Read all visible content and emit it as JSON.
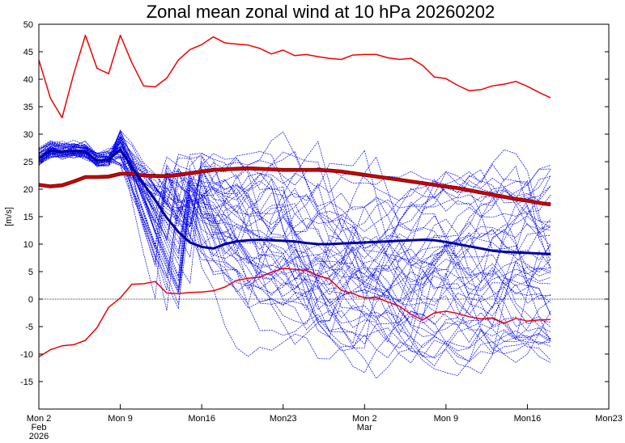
{
  "chart_data": {
    "type": "line",
    "title": "Zonal mean zonal wind at 10 hPa 20260202",
    "ylabel": "[m/s]",
    "xlabel": "",
    "ylim": [
      -20,
      50
    ],
    "yticks": [
      -15,
      -10,
      -5,
      0,
      5,
      10,
      15,
      20,
      25,
      30,
      35,
      40,
      45,
      50
    ],
    "xlim_days": [
      0,
      49
    ],
    "xticks": [
      {
        "day": 0,
        "label": "Mon 2",
        "sub1": "Feb",
        "sub2": "2026"
      },
      {
        "day": 7,
        "label": "Mon 9",
        "sub1": "",
        "sub2": ""
      },
      {
        "day": 14,
        "label": "Mon16",
        "sub1": "",
        "sub2": ""
      },
      {
        "day": 21,
        "label": "Mon23",
        "sub1": "",
        "sub2": ""
      },
      {
        "day": 28,
        "label": "Mon 2",
        "sub1": "Mar",
        "sub2": ""
      },
      {
        "day": 35,
        "label": "Mon 9",
        "sub1": "",
        "sub2": ""
      },
      {
        "day": 42,
        "label": "Mon16",
        "sub1": "",
        "sub2": ""
      },
      {
        "day": 49,
        "label": "Mon23",
        "sub1": "",
        "sub2": ""
      }
    ],
    "colors": {
      "ensemble": "#0000ee",
      "mean": "#000099",
      "climatology": "#cc0000",
      "extremes": "#ee0000",
      "zero": "#000000"
    },
    "series": [
      {
        "name": "historical maximum",
        "role": "extreme",
        "x": [
          0,
          1,
          2,
          3,
          4,
          5,
          6,
          7,
          8,
          9,
          10,
          11,
          12,
          13,
          14,
          15,
          16,
          17,
          18,
          19,
          20,
          21,
          22,
          23,
          24,
          25,
          26,
          27,
          28,
          29,
          30,
          31,
          32,
          33,
          34,
          35,
          36,
          37,
          38,
          39,
          40,
          41,
          42,
          43,
          44
        ],
        "values": [
          43.5,
          36.5,
          33,
          41,
          48,
          42,
          41,
          48,
          43,
          38.8,
          38.6,
          40.2,
          43.5,
          45.4,
          46.3,
          47.7,
          46.6,
          46.4,
          46.2,
          45.6,
          44.6,
          45.3,
          44.3,
          44.5,
          44.1,
          43.8,
          43.6,
          44.4,
          44.5,
          44.5,
          43.9,
          43.6,
          43.8,
          42.5,
          40.4,
          40.1,
          38.9,
          37.9,
          38.1,
          38.8,
          39.1,
          39.6,
          38.7,
          37.6,
          36.6
        ]
      },
      {
        "name": "historical minimum",
        "role": "extreme",
        "x": [
          0,
          1,
          2,
          3,
          4,
          5,
          6,
          7,
          8,
          9,
          10,
          11,
          12,
          13,
          14,
          15,
          16,
          17,
          18,
          19,
          20,
          21,
          22,
          23,
          24,
          25,
          26,
          27,
          28,
          29,
          30,
          31,
          32,
          33,
          34,
          35,
          36,
          37,
          38,
          39,
          40,
          41,
          42,
          43,
          44
        ],
        "values": [
          -10.5,
          -9.2,
          -8.5,
          -8.3,
          -7.5,
          -5.2,
          -1.5,
          0.2,
          2.7,
          2.8,
          3.2,
          1.1,
          1.0,
          1.2,
          1.3,
          1.5,
          2.2,
          3.4,
          3.8,
          4.0,
          4.9,
          5.6,
          5.4,
          5.2,
          4.3,
          3.6,
          1.6,
          1.0,
          0.2,
          0.3,
          -0.5,
          -1.3,
          -2.8,
          -3.8,
          -2.5,
          -2.2,
          -2.6,
          -3.2,
          -3.6,
          -3.4,
          -4.4,
          -3.5,
          -4.0,
          -3.8,
          -3.7
        ]
      },
      {
        "name": "climatological mean",
        "role": "climatology",
        "x": [
          0,
          1,
          2,
          3,
          4,
          5,
          6,
          7,
          8,
          9,
          10,
          11,
          12,
          13,
          14,
          15,
          16,
          17,
          18,
          19,
          20,
          21,
          22,
          23,
          24,
          25,
          26,
          27,
          28,
          29,
          30,
          31,
          32,
          33,
          34,
          35,
          36,
          37,
          38,
          39,
          40,
          41,
          42,
          43,
          44
        ],
        "values": [
          20.8,
          20.5,
          20.7,
          21.4,
          22.2,
          22.2,
          22.3,
          22.8,
          22.8,
          22.5,
          22.4,
          22.4,
          22.6,
          22.9,
          23.2,
          23.5,
          23.6,
          23.7,
          23.8,
          23.7,
          23.6,
          23.5,
          23.5,
          23.5,
          23.5,
          23.4,
          23.2,
          22.9,
          22.6,
          22.3,
          22.0,
          21.7,
          21.4,
          21.1,
          20.8,
          20.5,
          20.2,
          19.8,
          19.4,
          19.0,
          18.6,
          18.2,
          17.9,
          17.5,
          17.2
        ]
      },
      {
        "name": "ensemble mean",
        "role": "mean",
        "x": [
          0,
          1,
          2,
          3,
          4,
          5,
          6,
          7,
          8,
          9,
          10,
          11,
          12,
          13,
          14,
          15,
          16,
          17,
          18,
          19,
          20,
          21,
          22,
          23,
          24,
          25,
          26,
          27,
          28,
          29,
          30,
          31,
          32,
          33,
          34,
          35,
          36,
          37,
          38,
          39,
          40,
          41,
          42,
          43,
          44
        ],
        "values": [
          25.6,
          27.0,
          26.8,
          27.0,
          26.8,
          25.2,
          25.4,
          27.2,
          24.0,
          21.0,
          18.0,
          14.8,
          12.2,
          10.3,
          9.5,
          9.2,
          10.0,
          10.5,
          10.7,
          10.8,
          10.7,
          10.6,
          10.5,
          10.2,
          10.0,
          10.0,
          10.1,
          10.2,
          10.3,
          10.4,
          10.5,
          10.6,
          10.7,
          10.8,
          10.7,
          10.4,
          10.0,
          9.6,
          9.2,
          8.8,
          8.6,
          8.5,
          8.4,
          8.3,
          8.2
        ]
      }
    ],
    "ensemble": {
      "name": "ensemble members",
      "members": 50,
      "days": 44,
      "start_range": [
        25,
        27.5
      ],
      "peak_day7_range": [
        24,
        30.7
      ],
      "day44_range": [
        -17.6,
        29.6
      ],
      "overall_range": [
        -17.8,
        32.4
      ]
    }
  }
}
